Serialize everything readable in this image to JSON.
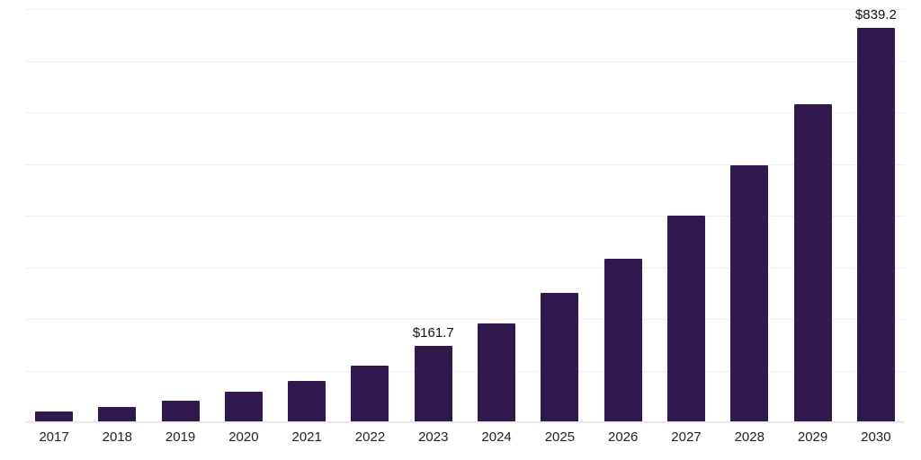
{
  "chart_data": {
    "type": "bar",
    "title": "",
    "xlabel": "",
    "ylabel": "",
    "categories": [
      "2017",
      "2018",
      "2019",
      "2020",
      "2021",
      "2022",
      "2023",
      "2024",
      "2025",
      "2026",
      "2027",
      "2028",
      "2029",
      "2030"
    ],
    "values": [
      22,
      32,
      46,
      65,
      88,
      120,
      161.7,
      210,
      275,
      348,
      440,
      547,
      678,
      839.2
    ],
    "value_labels": [
      null,
      null,
      null,
      null,
      null,
      null,
      "$161.7",
      null,
      null,
      null,
      null,
      null,
      null,
      "$839.2"
    ],
    "ylim": [
      0,
      880
    ],
    "grid": true,
    "grid_divisions": 8,
    "legend_position": "none",
    "colors": {
      "bar": "#31194d",
      "gridline": "#efefef",
      "axis_label": "#222222",
      "value_label": "#111111",
      "background": "#ffffff"
    }
  }
}
